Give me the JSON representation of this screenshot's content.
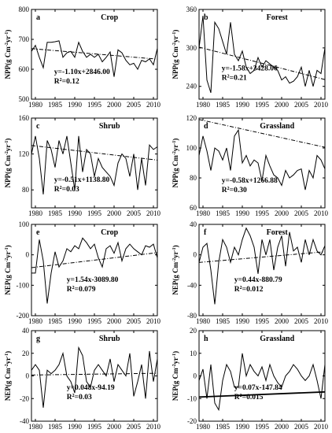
{
  "chart_data": [
    {
      "id": "a",
      "type": "line",
      "title": "Crop",
      "ylabel": "NPP(g Cm⁻²yr⁻¹)",
      "ylim": [
        500,
        800
      ],
      "yticks": [
        500,
        600,
        700,
        800
      ],
      "xlim": [
        1979,
        2011
      ],
      "xticks": [
        1980,
        1985,
        1990,
        1995,
        2000,
        2005,
        2010
      ],
      "x": [
        1979,
        1980,
        1981,
        1982,
        1983,
        1984,
        1985,
        1986,
        1987,
        1988,
        1989,
        1990,
        1991,
        1992,
        1993,
        1994,
        1995,
        1996,
        1997,
        1998,
        1999,
        2000,
        2001,
        2002,
        2003,
        2004,
        2005,
        2006,
        2007,
        2008,
        2009,
        2010,
        2011
      ],
      "y": [
        660,
        680,
        640,
        605,
        690,
        690,
        692,
        695,
        640,
        655,
        660,
        640,
        690,
        660,
        640,
        650,
        640,
        650,
        625,
        640,
        658,
        575,
        665,
        655,
        630,
        615,
        620,
        600,
        630,
        625,
        635,
        615,
        670
      ],
      "trend": {
        "slope": -1.1,
        "intercept": 2846
      },
      "equation": "y=-1.10x+2846.00",
      "r2": "R²=0.12",
      "legend": "top-right"
    },
    {
      "id": "b",
      "type": "line",
      "title": "Forest",
      "ylabel": "NPP(g Cm⁻²yr⁻¹)",
      "ylim": [
        220,
        360
      ],
      "yticks": [
        240,
        300,
        360
      ],
      "xlim": [
        1979,
        2011
      ],
      "xticks": [
        1980,
        1985,
        1990,
        1995,
        2000,
        2005,
        2010
      ],
      "x": [
        1979,
        1980,
        1981,
        1982,
        1983,
        1984,
        1985,
        1986,
        1987,
        1988,
        1989,
        1990,
        1991,
        1992,
        1993,
        1994,
        1995,
        1996,
        1997,
        1998,
        1999,
        2000,
        2001,
        2002,
        2003,
        2004,
        2005,
        2006,
        2007,
        2008,
        2009,
        2010,
        2011
      ],
      "y": [
        300,
        350,
        250,
        230,
        340,
        330,
        310,
        290,
        340,
        290,
        280,
        295,
        270,
        260,
        265,
        285,
        270,
        280,
        275,
        270,
        265,
        250,
        255,
        245,
        248,
        255,
        270,
        240,
        265,
        240,
        265,
        260,
        300
      ],
      "trend": {
        "slope": -1.58,
        "intercept": 3428.06
      },
      "equation": "y=-1.58x+3428.06",
      "r2": "R²=0.21"
    },
    {
      "id": "c",
      "type": "line",
      "title": "Shrub",
      "ylabel": "NPP(g Cm⁻²yr⁻¹)",
      "ylim": [
        60,
        160
      ],
      "yticks": [
        80,
        120,
        160
      ],
      "xlim": [
        1979,
        2011
      ],
      "xticks": [
        1980,
        1985,
        1990,
        1995,
        2000,
        2005,
        2010
      ],
      "x": [
        1979,
        1980,
        1981,
        1982,
        1983,
        1984,
        1985,
        1986,
        1987,
        1988,
        1989,
        1990,
        1991,
        1992,
        1993,
        1994,
        1995,
        1996,
        1997,
        1998,
        1999,
        2000,
        2001,
        2002,
        2003,
        2004,
        2005,
        2006,
        2007,
        2008,
        2009,
        2010,
        2011
      ],
      "y": [
        120,
        140,
        115,
        75,
        135,
        125,
        105,
        135,
        120,
        140,
        110,
        80,
        140,
        100,
        125,
        120,
        95,
        115,
        105,
        100,
        95,
        85,
        110,
        120,
        115,
        95,
        120,
        80,
        115,
        85,
        130,
        125,
        128
      ],
      "trend": {
        "slope": -0.51,
        "intercept": 1138.8
      },
      "equation": "y=-0.51x+1138.80",
      "r2": "R²=0.03"
    },
    {
      "id": "d",
      "type": "line",
      "title": "Grassland",
      "ylabel": "NPP(g Cm⁻²yr⁻¹)",
      "ylim": [
        60,
        120
      ],
      "yticks": [
        60,
        80,
        100,
        120
      ],
      "xlim": [
        1979,
        2011
      ],
      "xticks": [
        1980,
        1985,
        1990,
        1995,
        2000,
        2005,
        2010
      ],
      "x": [
        1979,
        1980,
        1981,
        1982,
        1983,
        1984,
        1985,
        1986,
        1987,
        1988,
        1989,
        1990,
        1991,
        1992,
        1993,
        1994,
        1995,
        1996,
        1997,
        1998,
        1999,
        2000,
        2001,
        2002,
        2003,
        2004,
        2005,
        2006,
        2007,
        2008,
        2009,
        2010,
        2011
      ],
      "y": [
        95,
        108,
        98,
        85,
        100,
        98,
        92,
        100,
        85,
        108,
        112,
        90,
        95,
        88,
        92,
        90,
        78,
        95,
        88,
        82,
        80,
        75,
        85,
        80,
        82,
        85,
        86,
        72,
        85,
        80,
        95,
        92,
        86
      ],
      "trend": {
        "slope": -0.58,
        "intercept": 1266.88
      },
      "equation": "y=-0.58x+1266.88",
      "r2": "R²=0.30"
    },
    {
      "id": "e",
      "type": "line",
      "title": "Crop",
      "ylabel": "NEP(g Cm⁻²yr⁻¹)",
      "ylim": [
        -200,
        100
      ],
      "yticks": [
        -200,
        -100,
        0,
        100
      ],
      "xlim": [
        1979,
        2011
      ],
      "xticks": [
        1980,
        1985,
        1990,
        1995,
        2000,
        2005,
        2010
      ],
      "x": [
        1979,
        1980,
        1981,
        1982,
        1983,
        1984,
        1985,
        1986,
        1987,
        1988,
        1989,
        1990,
        1991,
        1992,
        1993,
        1994,
        1995,
        1996,
        1997,
        1998,
        1999,
        2000,
        2001,
        2002,
        2003,
        2004,
        2005,
        2006,
        2007,
        2008,
        2009,
        2010,
        2011
      ],
      "y": [
        -60,
        -60,
        50,
        -20,
        -160,
        -60,
        10,
        -40,
        -20,
        20,
        10,
        30,
        20,
        55,
        40,
        20,
        35,
        -10,
        -40,
        20,
        30,
        5,
        40,
        -20,
        20,
        35,
        20,
        10,
        0,
        30,
        25,
        35,
        -10
      ],
      "trend": {
        "slope": 1.54,
        "intercept": -3089.8
      },
      "equation": "y=1.54x-3089.80",
      "r2": "R²=0.079"
    },
    {
      "id": "f",
      "type": "line",
      "title": "Forest",
      "ylabel": "NEP(g Cm⁻²yr⁻¹)",
      "ylim": [
        -80,
        40
      ],
      "yticks": [
        -80,
        -40,
        0,
        40
      ],
      "xlim": [
        1979,
        2011
      ],
      "xticks": [
        1980,
        1985,
        1990,
        1995,
        2000,
        2005,
        2010
      ],
      "x": [
        1979,
        1980,
        1981,
        1982,
        1983,
        1984,
        1985,
        1986,
        1987,
        1988,
        1989,
        1990,
        1991,
        1992,
        1993,
        1994,
        1995,
        1996,
        1997,
        1998,
        1999,
        2000,
        2001,
        2002,
        2003,
        2004,
        2005,
        2006,
        2007,
        2008,
        2009,
        2010,
        2011
      ],
      "y": [
        -10,
        10,
        15,
        -20,
        -65,
        -10,
        20,
        10,
        -10,
        10,
        0,
        20,
        35,
        25,
        10,
        -25,
        20,
        0,
        20,
        -20,
        10,
        25,
        -15,
        30,
        5,
        10,
        -10,
        20,
        0,
        20,
        5,
        0,
        12
      ],
      "trend": {
        "slope": 0.44,
        "intercept": -880.79
      },
      "equation": "y=0.44x-880.79",
      "r2": "R²=0.012"
    },
    {
      "id": "g",
      "type": "line",
      "title": "Shrub",
      "ylabel": "NEP(g Cm⁻²yr⁻¹)",
      "ylim": [
        -40,
        40
      ],
      "yticks": [
        -40,
        -20,
        0,
        20,
        40
      ],
      "xlim": [
        1979,
        2011
      ],
      "xticks": [
        1980,
        1985,
        1990,
        1995,
        2000,
        2005,
        2010
      ],
      "x": [
        1979,
        1980,
        1981,
        1982,
        1983,
        1984,
        1985,
        1986,
        1987,
        1988,
        1989,
        1990,
        1991,
        1992,
        1993,
        1994,
        1995,
        1996,
        1997,
        1998,
        1999,
        2000,
        2001,
        2002,
        2003,
        2004,
        2005,
        2006,
        2007,
        2008,
        2009,
        2010,
        2011
      ],
      "y": [
        5,
        10,
        5,
        -28,
        5,
        2,
        5,
        10,
        20,
        0,
        -5,
        -15,
        25,
        18,
        -5,
        -10,
        5,
        10,
        5,
        0,
        15,
        -5,
        10,
        5,
        0,
        20,
        -18,
        -5,
        10,
        -20,
        22,
        -5,
        15
      ],
      "trend": {
        "slope": 0.048,
        "intercept": -94.19
      },
      "equation": "y=0.048x-94.19",
      "r2": "R²=0.03"
    },
    {
      "id": "h",
      "type": "line",
      "title": "Grassland",
      "ylabel": "NEP(g Cm⁻²yr⁻¹)",
      "ylim": [
        -20,
        20
      ],
      "yticks": [
        -20,
        -10,
        0,
        10,
        20
      ],
      "xlim": [
        1979,
        2011
      ],
      "xticks": [
        1980,
        1985,
        1990,
        1995,
        2000,
        2005,
        2010
      ],
      "x": [
        1979,
        1980,
        1981,
        1982,
        1983,
        1984,
        1985,
        1986,
        1987,
        1988,
        1989,
        1990,
        1991,
        1992,
        1993,
        1994,
        1995,
        1996,
        1997,
        1998,
        1999,
        2000,
        2001,
        2002,
        2003,
        2004,
        2005,
        2006,
        2007,
        2008,
        2009,
        2010,
        2011
      ],
      "y": [
        -2,
        3,
        -10,
        5,
        -12,
        -15,
        -2,
        5,
        2,
        -5,
        -5,
        10,
        0,
        5,
        2,
        0,
        4,
        -2,
        5,
        0,
        -3,
        -5,
        0,
        2,
        5,
        3,
        0,
        -2,
        0,
        5,
        -2,
        -10,
        5
      ],
      "trend": {
        "slope": 0.07,
        "intercept": -147.84
      },
      "equation": "y=0.07x-147.84",
      "r2": "R²=0.015"
    }
  ]
}
